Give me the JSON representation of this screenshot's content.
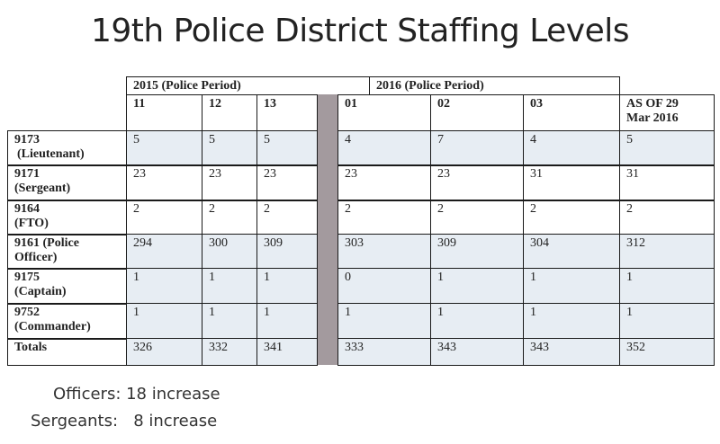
{
  "title": "19th Police District Staffing Levels",
  "table": {
    "period_headers": [
      "2015 (Police Period)",
      "2016 (Police Period)"
    ],
    "columns": [
      "11",
      "12",
      "13",
      "01",
      "02",
      "03",
      "AS OF 29 Mar 2016"
    ],
    "column_lines": {
      "asof_line1": "AS OF 29",
      "asof_line2": "Mar 2016"
    },
    "rows": [
      {
        "label_line1": "9173",
        "label_line2": "(Lieutenant)",
        "values": [
          "5",
          "5",
          "5",
          "4",
          "7",
          "4",
          "5"
        ]
      },
      {
        "label_line1": "9171",
        "label_line2": "(Sergeant)",
        "values": [
          "23",
          "23",
          "23",
          "23",
          "23",
          "31",
          "31"
        ]
      },
      {
        "label_line1": "9164",
        "label_line2": "(FTO)",
        "values": [
          "2",
          "2",
          "2",
          "2",
          "2",
          "2",
          "2"
        ]
      },
      {
        "label_line1": "9161 (Police",
        "label_line2": "Officer)",
        "values": [
          "294",
          "300",
          "309",
          "303",
          "309",
          "304",
          "312"
        ]
      },
      {
        "label_line1": "9175",
        "label_line2": "(Captain)",
        "values": [
          "1",
          "1",
          "1",
          "0",
          "1",
          "1",
          "1"
        ]
      },
      {
        "label_line1": "9752",
        "label_line2": "(Commander)",
        "values": [
          "1",
          "1",
          "1",
          "1",
          "1",
          "1",
          "1"
        ]
      },
      {
        "label_line1": "Totals",
        "label_line2": "",
        "values": [
          "326",
          "332",
          "341",
          "333",
          "343",
          "343",
          "352"
        ]
      }
    ]
  },
  "footer": {
    "line1": "Officers: 18 increase",
    "line2": "Sergeants:   8 increase"
  },
  "colors": {
    "row_shade": "#e7edf3",
    "separator": "#a39a9e",
    "border": "#1a1a1a"
  }
}
